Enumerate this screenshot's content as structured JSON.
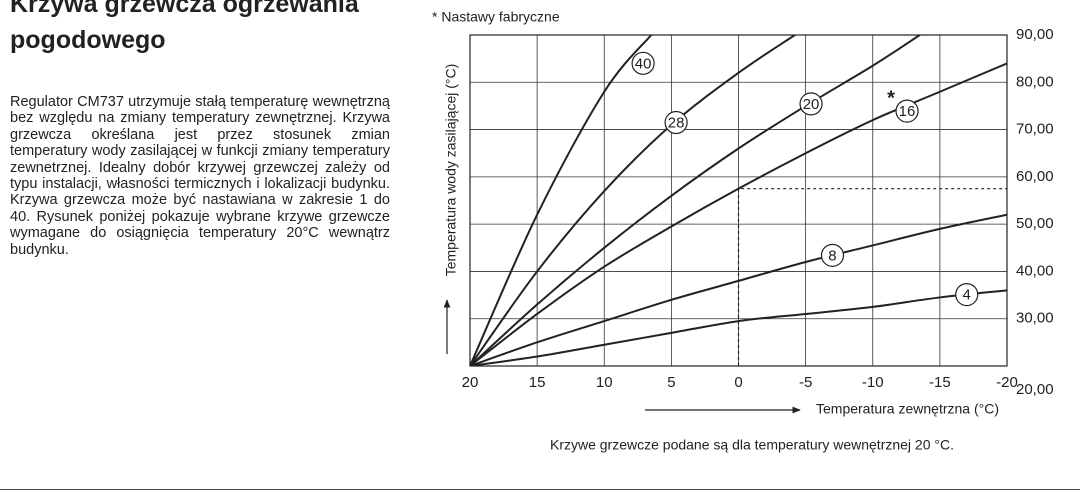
{
  "header": {
    "title": "Krzywa grzewcza ogrzewania pogodowego"
  },
  "body": {
    "paragraph": "Regulator CM737 utrzymuje stałą temperaturę wewnętrzną bez względu na zmiany temperatury zewnętrznej. Krzywa grzewcza określana jest przez stosunek zmian temperatury wody zasilającej w funkcji zmiany temperatury zewnetrznej. Idealny dobór krzywej grzewczej zależy od typu instalacji, własności termicznych i lokalizacji budynku. Krzywa grzewcza może być nastawiana w zakresie 1 do 40. Rysunek poniżej pokazuje wybrane krzywe grzewcze wymagane do osiągnięcia temperatury 20°C wewnątrz budynku."
  },
  "chart_data": {
    "type": "line",
    "annotation": "* Nastawy fabryczne",
    "xlabel": "Temperatura zewnętrzna (°C)",
    "ylabel": "Temperatura wody zasilającej (°C)",
    "caption": "Krzywe grzewcze podane są dla temperatury wewnętrznej 20 °C.",
    "xlim": [
      20,
      -20
    ],
    "xticks": [
      20,
      15,
      10,
      5,
      0,
      -5,
      -10,
      -15,
      -20
    ],
    "ylim": [
      20,
      90
    ],
    "yticks": [
      {
        "value": 20,
        "label": "20,00"
      },
      {
        "value": 30,
        "label": "30,00"
      },
      {
        "value": 40,
        "label": "40,00"
      },
      {
        "value": 50,
        "label": "50,00"
      },
      {
        "value": 60,
        "label": "60,00"
      },
      {
        "value": 70,
        "label": "70,00"
      },
      {
        "value": 80,
        "label": "80,00"
      },
      {
        "value": 90,
        "label": "90,00"
      }
    ],
    "grid": true,
    "series": [
      {
        "name": "40",
        "color": "#222",
        "x": [
          20,
          15,
          10,
          6.5
        ],
        "values": [
          20,
          52,
          78,
          90
        ]
      },
      {
        "name": "28",
        "color": "#222",
        "x": [
          20,
          15,
          10,
          5,
          0,
          -4.2
        ],
        "values": [
          20,
          40,
          57,
          71,
          82,
          90
        ]
      },
      {
        "name": "20",
        "color": "#222",
        "x": [
          20,
          15,
          10,
          5,
          0,
          -5,
          -10,
          -13.5
        ],
        "values": [
          20,
          33,
          45,
          56,
          66,
          75,
          83.5,
          90
        ]
      },
      {
        "name": "16",
        "color": "#222",
        "marker": "*",
        "x": [
          20,
          15,
          10,
          5,
          0,
          -5,
          -10,
          -15,
          -20
        ],
        "values": [
          20,
          31,
          41,
          49.5,
          57.5,
          65,
          72,
          78,
          84
        ]
      },
      {
        "name": "8",
        "color": "#222",
        "x": [
          20,
          15,
          10,
          5,
          0,
          -5,
          -10,
          -15,
          -20
        ],
        "values": [
          20,
          25,
          29.5,
          34,
          38,
          42,
          45.5,
          49,
          52
        ]
      },
      {
        "name": "4",
        "color": "#222",
        "x": [
          20,
          15,
          10,
          5,
          0,
          -5,
          -10,
          -15,
          -20
        ],
        "values": [
          20,
          22,
          24.5,
          27,
          29.5,
          31,
          32.5,
          34.5,
          36
        ]
      }
    ]
  }
}
